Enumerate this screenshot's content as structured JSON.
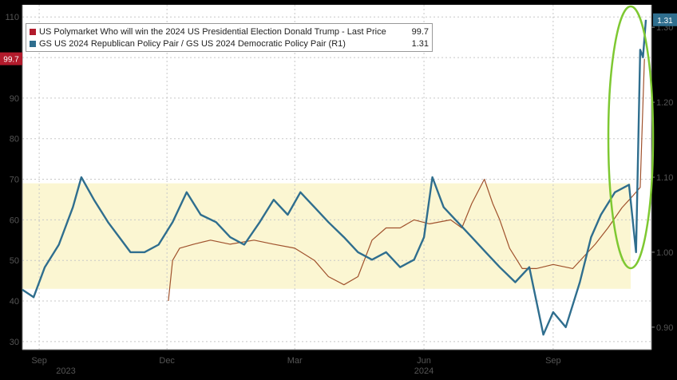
{
  "chart_data": {
    "type": "line",
    "series": [
      {
        "name": "US Polymarket Who will win the 2024 US Presidential Election Donald Trump - Last Price",
        "last_value": "99.7",
        "axis": "left",
        "color": "#a0522d",
        "x": [
          "2023-12-02",
          "2023-12-05",
          "2023-12-10",
          "2023-12-20",
          "2024-01-01",
          "2024-01-15",
          "2024-02-01",
          "2024-02-15",
          "2024-03-01",
          "2024-03-15",
          "2024-03-25",
          "2024-04-05",
          "2024-04-15",
          "2024-04-25",
          "2024-05-05",
          "2024-05-15",
          "2024-05-25",
          "2024-06-05",
          "2024-06-20",
          "2024-06-28",
          "2024-07-05",
          "2024-07-14",
          "2024-07-20",
          "2024-07-25",
          "2024-08-01",
          "2024-08-10",
          "2024-08-20",
          "2024-09-01",
          "2024-09-15",
          "2024-10-01",
          "2024-10-10",
          "2024-10-20",
          "2024-10-28",
          "2024-11-02",
          "2024-11-05"
        ],
        "values": [
          40,
          50,
          53,
          54,
          55,
          54,
          55,
          54,
          53,
          50,
          46,
          44,
          46,
          55,
          58,
          58,
          60,
          59,
          60,
          58,
          64,
          70,
          64,
          60,
          53,
          48,
          48,
          49,
          48,
          54,
          58,
          63,
          66,
          68,
          99.7
        ]
      },
      {
        "name": "GS US 2024 Republican Policy Pair / GS US 2024 Democratic Policy Pair (R1)",
        "last_value": "1.31",
        "axis": "right",
        "color": "#2f6e8e",
        "x": [
          "2023-08-20",
          "2023-08-28",
          "2023-09-05",
          "2023-09-15",
          "2023-09-25",
          "2023-10-01",
          "2023-10-10",
          "2023-10-20",
          "2023-10-28",
          "2023-11-05",
          "2023-11-15",
          "2023-11-25",
          "2023-12-05",
          "2023-12-15",
          "2023-12-25",
          "2024-01-05",
          "2024-01-15",
          "2024-01-25",
          "2024-02-05",
          "2024-02-15",
          "2024-02-25",
          "2024-03-05",
          "2024-03-15",
          "2024-03-25",
          "2024-04-05",
          "2024-04-15",
          "2024-04-25",
          "2024-05-05",
          "2024-05-15",
          "2024-05-25",
          "2024-06-01",
          "2024-06-07",
          "2024-06-15",
          "2024-06-25",
          "2024-07-05",
          "2024-07-15",
          "2024-07-25",
          "2024-08-05",
          "2024-08-15",
          "2024-08-25",
          "2024-09-01",
          "2024-09-10",
          "2024-09-20",
          "2024-09-28",
          "2024-10-05",
          "2024-10-15",
          "2024-10-25",
          "2024-10-30",
          "2024-11-02",
          "2024-11-04",
          "2024-11-06"
        ],
        "values": [
          0.95,
          0.94,
          0.98,
          1.01,
          1.06,
          1.1,
          1.07,
          1.04,
          1.02,
          1.0,
          1.0,
          1.01,
          1.04,
          1.08,
          1.05,
          1.04,
          1.02,
          1.01,
          1.04,
          1.07,
          1.05,
          1.08,
          1.06,
          1.04,
          1.02,
          1.0,
          0.99,
          1.0,
          0.98,
          0.99,
          1.02,
          1.1,
          1.06,
          1.04,
          1.02,
          1.0,
          0.98,
          0.96,
          0.98,
          0.89,
          0.92,
          0.9,
          0.96,
          1.02,
          1.05,
          1.08,
          1.09,
          1.0,
          1.27,
          1.26,
          1.31
        ]
      }
    ],
    "y_left": {
      "ticks": [
        "30",
        "40",
        "50",
        "60",
        "70",
        "80",
        "90",
        "100",
        "110"
      ],
      "range": [
        28,
        113
      ]
    },
    "y_right": {
      "ticks": [
        "0.90",
        "1.00",
        "1.10",
        "1.20",
        "1.30"
      ],
      "range": [
        0.87,
        1.33
      ]
    },
    "x_range": [
      "2023-08-20",
      "2024-11-10"
    ],
    "x_ticks": [
      {
        "label": "Sep",
        "date": "2023-09-01"
      },
      {
        "label": "Dec",
        "date": "2023-12-01"
      },
      {
        "label": "Mar",
        "date": "2024-03-01"
      },
      {
        "label": "Jun",
        "date": "2024-06-01"
      },
      {
        "label": "Sep",
        "date": "2024-09-01"
      }
    ],
    "year_labels": [
      {
        "label": "2023",
        "date": "2023-09-20"
      },
      {
        "label": "2024",
        "date": "2024-06-01"
      }
    ],
    "highlight_band_left_axis": [
      43,
      69
    ],
    "highlight_band_color": "#fbf6d2",
    "highlight_ellipse_color": "#7ec832",
    "left_tag": {
      "value": "99.7",
      "color": "#b21b2c"
    },
    "right_tag": {
      "value": "1.31",
      "color": "#2f6e8e"
    },
    "legend_swatch_colors": [
      "#b21b2c",
      "#2f6e8e"
    ],
    "grid": true
  }
}
